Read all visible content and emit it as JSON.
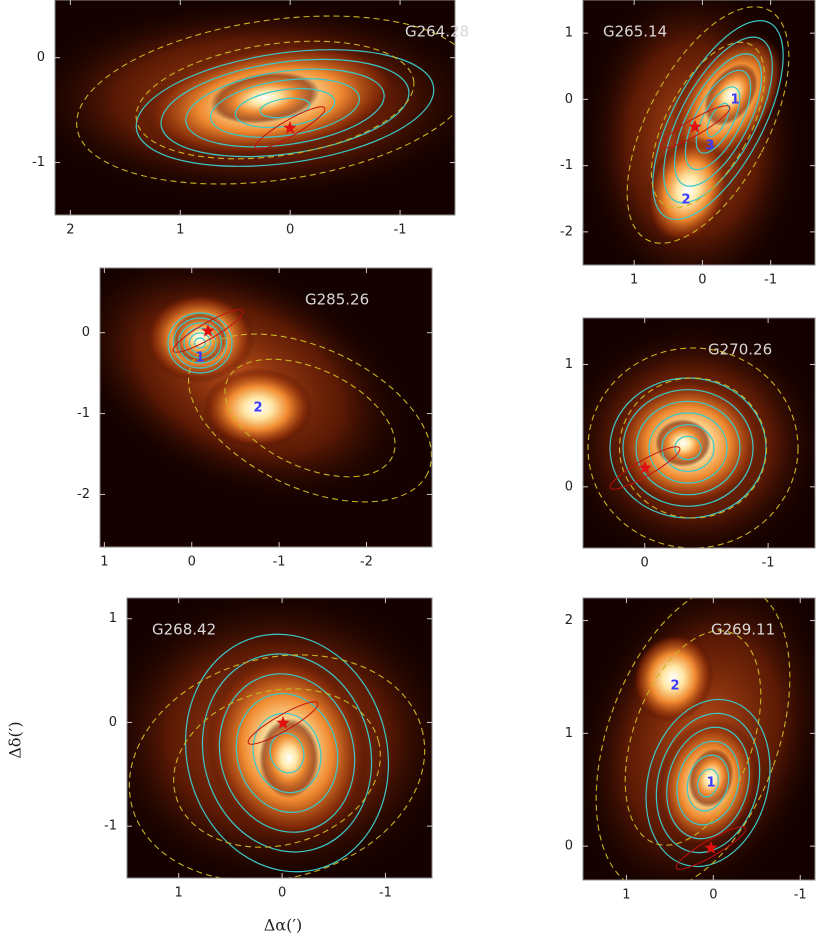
{
  "figure": {
    "y_axis_label": "Δδ(′)",
    "x_axis_label": "Δα(′)",
    "panels": [
      {
        "title": "G264.28",
        "xlim": [
          2.14,
          -1.5
        ],
        "ylim": [
          -1.5,
          0.55
        ],
        "xticks": [
          2,
          1,
          0,
          -1
        ],
        "yticks": [
          0,
          -1
        ],
        "sources": []
      },
      {
        "title": "G265.14",
        "xlim": [
          1.75,
          -1.65
        ],
        "ylim": [
          -2.5,
          1.5
        ],
        "xticks": [
          1,
          0,
          -1
        ],
        "yticks": [
          1,
          0,
          -1,
          -2
        ],
        "sources": [
          "1",
          "3",
          "2"
        ]
      },
      {
        "title": "G285.26",
        "xlim": [
          1.05,
          -2.75
        ],
        "ylim": [
          -2.65,
          0.8
        ],
        "xticks": [
          1,
          0,
          -1,
          -2
        ],
        "yticks": [
          0,
          -1,
          -2
        ],
        "sources": [
          "1",
          "2"
        ]
      },
      {
        "title": "G270.26",
        "xlim": [
          0.5,
          -1.38
        ],
        "ylim": [
          -0.5,
          1.38
        ],
        "xticks": [
          0,
          -1
        ],
        "yticks": [
          1,
          0
        ],
        "sources": []
      },
      {
        "title": "G268.42",
        "xlim": [
          1.5,
          -1.45
        ],
        "ylim": [
          -1.5,
          1.2
        ],
        "xticks": [
          1,
          0,
          -1
        ],
        "yticks": [
          1,
          0,
          -1
        ],
        "sources": []
      },
      {
        "title": "G269.11",
        "xlim": [
          1.5,
          -1.17
        ],
        "ylim": [
          -0.3,
          2.2
        ],
        "xticks": [
          1,
          0,
          -1
        ],
        "yticks": [
          2,
          1,
          0
        ],
        "sources": [
          "2",
          "1"
        ]
      }
    ]
  }
}
